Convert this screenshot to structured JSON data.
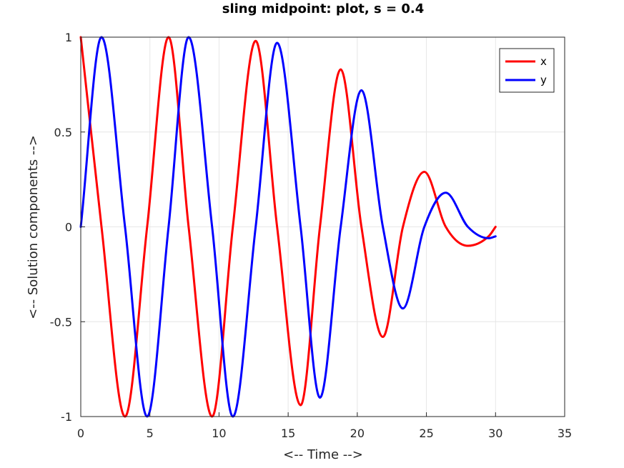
{
  "chart_data": {
    "type": "line",
    "title": "sling midpoint: plot, s = 0.4",
    "xlabel": "<-- Time -->",
    "ylabel": "<-- Solution components -->",
    "xlim": [
      0,
      35
    ],
    "ylim": [
      -1,
      1
    ],
    "xticks": [
      "0",
      "5",
      "10",
      "15",
      "20",
      "25",
      "30",
      "35"
    ],
    "yticks": [
      "-1",
      "-0.5",
      "0",
      "0.5",
      "1"
    ],
    "grid": true,
    "legend_position": "top-right",
    "x": [
      0,
      1.5,
      3.2,
      4.8,
      6.35,
      7.8,
      9.5,
      11.0,
      12.65,
      14.2,
      15.9,
      17.3,
      18.8,
      20.3,
      21.85,
      23.3,
      24.85,
      26.4,
      28.0,
      29.5,
      30.0
    ],
    "series": [
      {
        "name": "x",
        "color": "#ff0000",
        "values": [
          1.0,
          0.0,
          -1.0,
          0.0,
          1.0,
          0.0,
          -1.0,
          0.0,
          0.98,
          0.0,
          -0.94,
          0.0,
          0.83,
          0.0,
          -0.58,
          0.0,
          0.29,
          0.0,
          -0.1,
          -0.05,
          0.0
        ]
      },
      {
        "name": "y",
        "color": "#0000ff",
        "values": [
          0.0,
          1.0,
          0.0,
          -1.0,
          0.0,
          1.0,
          0.0,
          -1.0,
          0.0,
          0.97,
          0.0,
          -0.9,
          0.0,
          0.72,
          0.0,
          -0.43,
          0.0,
          0.18,
          0.0,
          -0.06,
          -0.05
        ]
      }
    ]
  }
}
